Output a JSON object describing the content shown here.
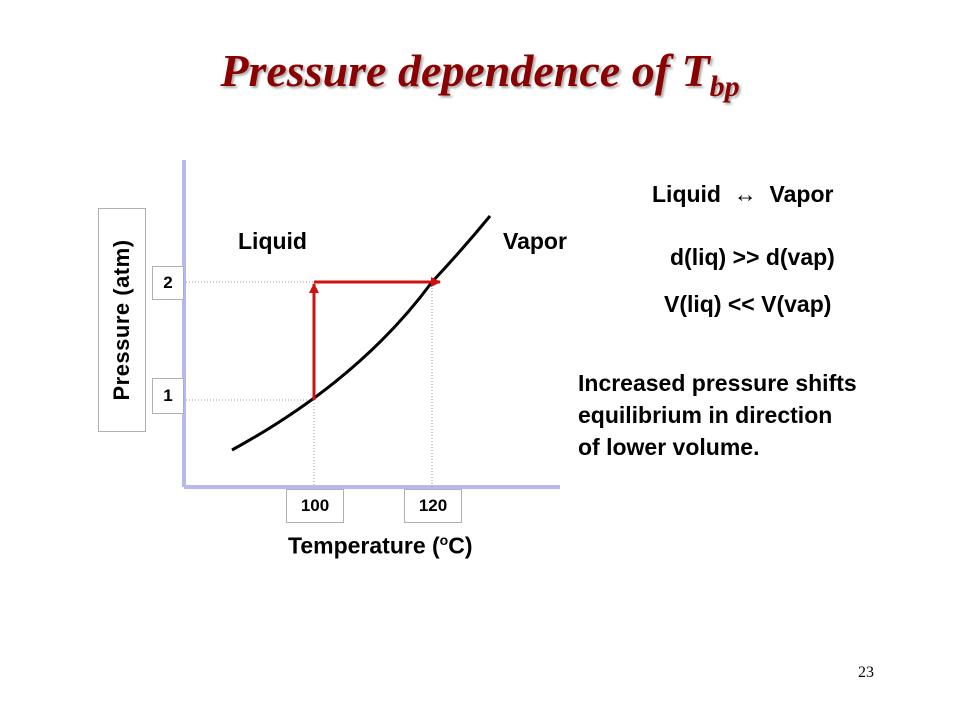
{
  "slide": {
    "title_main": "Pressure dependence of T",
    "title_sub": "bp",
    "page_number": "23"
  },
  "diagram": {
    "y_axis_label": "Pressure (atm)",
    "x_axis_label_prefix": "Temperature (",
    "x_axis_label_sup": "o",
    "x_axis_label_suffix": "C)",
    "y_ticks": [
      "2",
      "1"
    ],
    "x_ticks": [
      "100",
      "120"
    ],
    "region_liquid": "Liquid",
    "region_vapor": "Vapor"
  },
  "notes": {
    "equilibrium_left": "Liquid",
    "equilibrium_arrow": "↔",
    "equilibrium_right": "Vapor",
    "density_relation": "d(liq) >> d(vap)",
    "volume_relation": "V(liq) << V(vap)",
    "explanation_lines": [
      "Increased pressure shifts",
      "equilibrium in direction",
      "of lower volume."
    ]
  },
  "colors": {
    "title": "#8b0000",
    "arrow": "#cc1111",
    "axis": "#b8b8f0",
    "curve": "#000000"
  }
}
